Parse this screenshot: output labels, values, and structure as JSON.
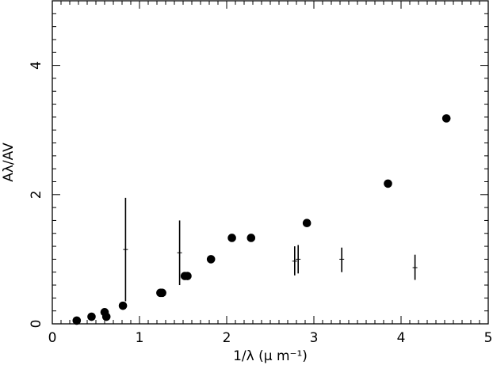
{
  "chart_data": {
    "type": "scatter",
    "xlabel": "1/λ (μ m⁻¹)",
    "ylabel": "Aλ/AV",
    "xlim": [
      0,
      5
    ],
    "ylim": [
      0,
      5
    ],
    "x_ticks": [
      "0",
      "1",
      "2",
      "3",
      "4",
      "5"
    ],
    "y_ticks": [
      "0",
      "2",
      "4"
    ],
    "grid": false,
    "series": [
      {
        "marker": "filled-circle",
        "points": [
          {
            "x": 0.28,
            "y": 0.05
          },
          {
            "x": 0.45,
            "y": 0.11
          },
          {
            "x": 0.6,
            "y": 0.18
          },
          {
            "x": 0.62,
            "y": 0.11
          },
          {
            "x": 0.81,
            "y": 0.28
          },
          {
            "x": 1.24,
            "y": 0.48
          },
          {
            "x": 1.26,
            "y": 0.48
          },
          {
            "x": 1.52,
            "y": 0.74
          },
          {
            "x": 1.55,
            "y": 0.74
          },
          {
            "x": 1.82,
            "y": 1.0
          },
          {
            "x": 2.06,
            "y": 1.33
          },
          {
            "x": 2.28,
            "y": 1.33
          },
          {
            "x": 2.92,
            "y": 1.56
          },
          {
            "x": 3.85,
            "y": 2.17
          },
          {
            "x": 4.52,
            "y": 3.18
          }
        ]
      },
      {
        "marker": "errorbar",
        "points": [
          {
            "x": 0.84,
            "y": 1.15,
            "ylow": 0.35,
            "yhigh": 1.95
          },
          {
            "x": 1.46,
            "y": 1.1,
            "ylow": 0.6,
            "yhigh": 1.6
          },
          {
            "x": 2.78,
            "y": 0.97,
            "ylow": 0.75,
            "yhigh": 1.2
          },
          {
            "x": 2.82,
            "y": 1.0,
            "ylow": 0.78,
            "yhigh": 1.22
          },
          {
            "x": 3.32,
            "y": 1.0,
            "ylow": 0.8,
            "yhigh": 1.18
          },
          {
            "x": 4.16,
            "y": 0.87,
            "ylow": 0.68,
            "yhigh": 1.07
          }
        ]
      }
    ]
  }
}
